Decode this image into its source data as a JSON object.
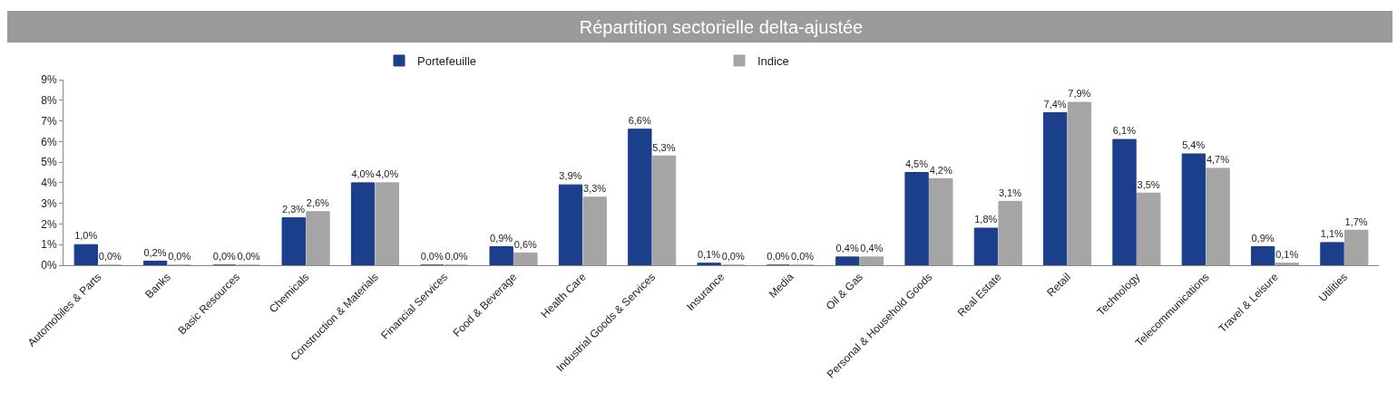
{
  "chart_data": {
    "type": "bar",
    "title": "Répartition sectorielle delta-ajustée",
    "categories": [
      "Automobiles & Parts",
      "Banks",
      "Basic Resources",
      "Chemicals",
      "Construction & Materials",
      "Financial Services",
      "Food & Beverage",
      "Health Care",
      "Industrial Goods & Services",
      "Insurance",
      "Media",
      "Oil & Gas",
      "Personal & Household Goods",
      "Real Estate",
      "Retail",
      "Technology",
      "Telecommunications",
      "Travel & Leisure",
      "Utilities"
    ],
    "series": [
      {
        "name": "Portefeuille",
        "color": "#1c3f8c",
        "values": [
          1.0,
          0.2,
          0.0,
          2.3,
          4.0,
          0.0,
          0.9,
          3.9,
          6.6,
          0.1,
          0.0,
          0.4,
          4.5,
          1.8,
          7.4,
          6.1,
          5.4,
          0.9,
          1.1
        ],
        "value_labels": [
          "1,0%",
          "0,2%",
          "0,0%",
          "2,3%",
          "4,0%",
          "0,0%",
          "0,9%",
          "3,9%",
          "6,6%",
          "0,1%",
          "0,0%",
          "0,4%",
          "4,5%",
          "1,8%",
          "7,4%",
          "6,1%",
          "5,4%",
          "0,9%",
          "1,1%"
        ]
      },
      {
        "name": "Indice",
        "color": "#a5a5a5",
        "values": [
          0.0,
          0.0,
          0.0,
          2.6,
          4.0,
          0.0,
          0.6,
          3.3,
          5.3,
          0.0,
          0.0,
          0.4,
          4.2,
          3.1,
          7.9,
          3.5,
          4.7,
          0.1,
          1.7
        ],
        "value_labels": [
          "0,0%",
          "0,0%",
          "0,0%",
          "2,6%",
          "4,0%",
          "0,0%",
          "0,6%",
          "3,3%",
          "5,3%",
          "0,0%",
          "0,0%",
          "0,4%",
          "4,2%",
          "3,1%",
          "7,9%",
          "3,5%",
          "4,7%",
          "0,1%",
          "1,7%"
        ]
      }
    ],
    "ylim": [
      0,
      9
    ],
    "yticks": [
      {
        "value": 0,
        "label": "0%"
      },
      {
        "value": 1,
        "label": "1%"
      },
      {
        "value": 2,
        "label": "2%"
      },
      {
        "value": 3,
        "label": "3%"
      },
      {
        "value": 4,
        "label": "4%"
      },
      {
        "value": 5,
        "label": "5%"
      },
      {
        "value": 6,
        "label": "6%"
      },
      {
        "value": 7,
        "label": "7%"
      },
      {
        "value": 8,
        "label": "8%"
      },
      {
        "value": 9,
        "label": "9%"
      }
    ],
    "legend": "top"
  }
}
